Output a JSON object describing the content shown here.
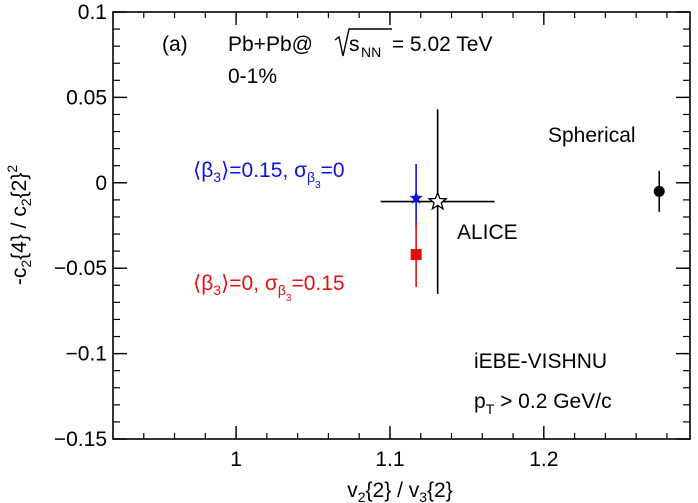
{
  "chart_data": {
    "type": "scatter",
    "panel_label": "(a)",
    "xlabel": "v2{2} / v3{2}",
    "ylabel": "-c2{4} / c2{2}^2",
    "xlim": [
      0.92,
      1.295
    ],
    "ylim": [
      -0.15,
      0.1
    ],
    "x_major_ticks": [
      1,
      1.1,
      1.2
    ],
    "x_minor_step": 0.02,
    "y_major_ticks": [
      -0.15,
      -0.1,
      -0.05,
      0,
      0.05,
      0.1
    ],
    "y_minor_step": 0.01,
    "x_tick_labels": [
      "1",
      "1.1",
      "1.2"
    ],
    "y_tick_labels": [
      "−0.15",
      "−0.1",
      "−0.05",
      "0",
      "0.05",
      "0.1"
    ],
    "annotations": {
      "system_prefix": "Pb+Pb@",
      "system_sqrt": "s",
      "system_sub": "NN",
      "system_value": " = 5.02 TeV",
      "centrality": "0-1%",
      "model": "iEBE-VISHNU",
      "pt_cut_prefix": "p",
      "pt_cut_sub": "T",
      "pt_cut_value": " > 0.2 GeV/c"
    },
    "series": [
      {
        "name": "ALICE",
        "label": "ALICE",
        "marker": "open-star",
        "color": "#000000",
        "x": 1.131,
        "y": -0.011,
        "xerr": [
          0.037,
          0.037
        ],
        "yerr": [
          0.054,
          0.054
        ]
      },
      {
        "name": "Spherical",
        "label": "Spherical",
        "marker": "circle",
        "color": "#000000",
        "x": 1.275,
        "y": -0.005,
        "yerr": [
          0.012,
          0.012
        ]
      },
      {
        "name": "beta3_0.15_sigma_0",
        "label_parts": [
          "⟨β",
          "3",
          "⟩=0.15, σ",
          "β",
          "3",
          "=0"
        ],
        "marker": "star",
        "color": "#1010e0",
        "x": 1.117,
        "y": -0.009,
        "yerr": [
          0.017,
          0.02
        ]
      },
      {
        "name": "beta3_0_sigma_0.15",
        "label_parts": [
          "⟨β",
          "3",
          "⟩=0, σ",
          "β",
          "3",
          "=0.15"
        ],
        "marker": "square",
        "color": "#e01010",
        "x": 1.117,
        "y": -0.042,
        "yerr": [
          0.019,
          0.019
        ]
      }
    ]
  }
}
